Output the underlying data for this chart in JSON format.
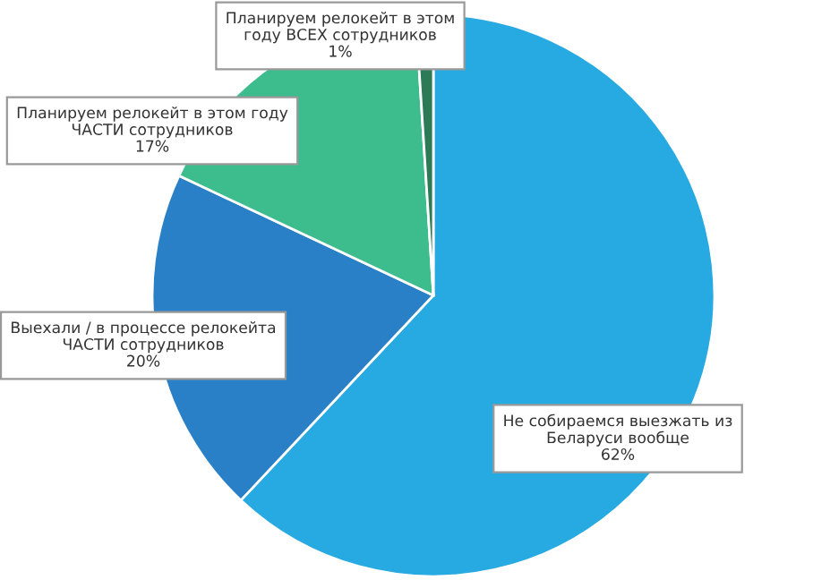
{
  "chart_data": {
    "type": "pie",
    "categories": [
      "Не собираемся выезжать из\nБеларуси вообще",
      "Выехали / в процессе релокейта\nЧАСТИ сотрудников",
      "Планируем релокейт в этом году\nЧАСТИ сотрудников",
      "Планируем релокейт в этом\nгоду ВСЕХ сотрудников"
    ],
    "values": [
      62,
      20,
      17,
      1
    ],
    "colors": [
      "#27a9e1",
      "#2a80c6",
      "#3dbd8e",
      "#2d7a56"
    ],
    "value_labels": [
      "62%",
      "20%",
      "17%",
      "1%"
    ]
  }
}
